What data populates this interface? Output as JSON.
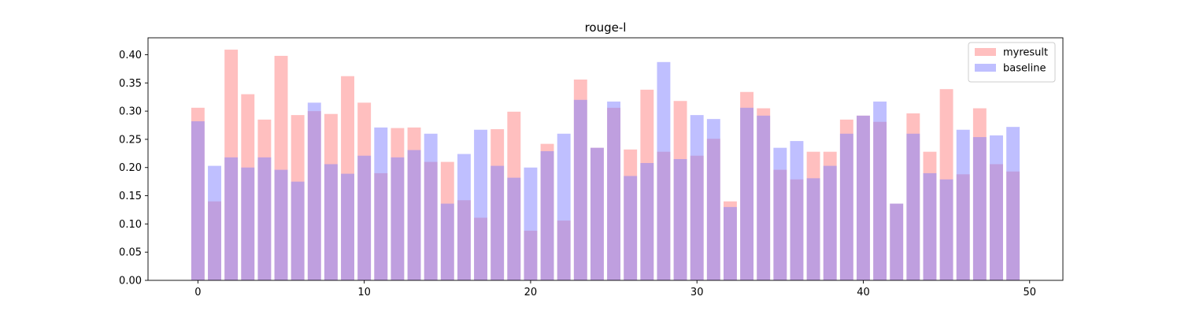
{
  "chart_data": {
    "type": "bar",
    "title": "rouge-l",
    "xlabel": "",
    "ylabel": "",
    "xlim": [
      -3,
      52
    ],
    "ylim": [
      0,
      0.43
    ],
    "xticks": [
      0,
      10,
      20,
      30,
      40,
      50
    ],
    "yticks": [
      0.0,
      0.05,
      0.1,
      0.15,
      0.2,
      0.25,
      0.3,
      0.35,
      0.4
    ],
    "ytick_labels": [
      "0.00",
      "0.05",
      "0.10",
      "0.15",
      "0.20",
      "0.25",
      "0.30",
      "0.35",
      "0.40"
    ],
    "grid": false,
    "legend_position": "top-right",
    "x": [
      0,
      1,
      2,
      3,
      4,
      5,
      6,
      7,
      8,
      9,
      10,
      11,
      12,
      13,
      14,
      15,
      16,
      17,
      18,
      19,
      20,
      21,
      22,
      23,
      24,
      25,
      26,
      27,
      28,
      29,
      30,
      31,
      32,
      33,
      34,
      35,
      36,
      37,
      38,
      39,
      40,
      41,
      42,
      43,
      44,
      45,
      46,
      47,
      48,
      49
    ],
    "series": [
      {
        "name": "myresult",
        "color": "#ff7f7f",
        "opacity": 0.5,
        "values": [
          0.306,
          0.14,
          0.409,
          0.33,
          0.285,
          0.398,
          0.293,
          0.3,
          0.295,
          0.362,
          0.315,
          0.19,
          0.27,
          0.271,
          0.21,
          0.21,
          0.142,
          0.111,
          0.268,
          0.299,
          0.088,
          0.242,
          0.106,
          0.356,
          0.235,
          0.306,
          0.232,
          0.338,
          0.228,
          0.318,
          0.221,
          0.251,
          0.14,
          0.334,
          0.305,
          0.196,
          0.179,
          0.228,
          0.228,
          0.285,
          0.292,
          0.281,
          0.136,
          0.296,
          0.228,
          0.339,
          0.188,
          0.305,
          0.206,
          0.193
        ]
      },
      {
        "name": "baseline",
        "color": "#7f7fff",
        "opacity": 0.5,
        "values": [
          0.282,
          0.203,
          0.218,
          0.2,
          0.218,
          0.196,
          0.175,
          0.315,
          0.206,
          0.189,
          0.221,
          0.271,
          0.218,
          0.231,
          0.26,
          0.136,
          0.224,
          0.267,
          0.203,
          0.182,
          0.2,
          0.229,
          0.26,
          0.32,
          0.235,
          0.317,
          0.185,
          0.208,
          0.387,
          0.215,
          0.293,
          0.286,
          0.13,
          0.306,
          0.292,
          0.235,
          0.247,
          0.181,
          0.203,
          0.26,
          0.292,
          0.317,
          0.136,
          0.26,
          0.19,
          0.179,
          0.267,
          0.254,
          0.257,
          0.272
        ]
      }
    ]
  }
}
